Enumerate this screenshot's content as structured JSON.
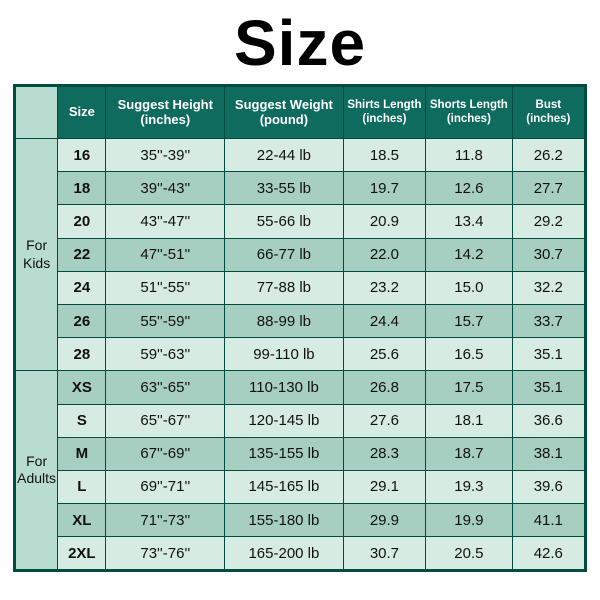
{
  "title": "Size",
  "headers": {
    "size": "Size",
    "height_l1": "Suggest Height",
    "height_l2": "(inches)",
    "weight_l1": "Suggest Weight",
    "weight_l2": "(pound)",
    "shirts_l1": "Shirts Length",
    "shirts_l2": "(inches)",
    "shorts_l1": "Shorts Length",
    "shorts_l2": "(inches)",
    "bust_l1": "Bust",
    "bust_l2": "(inches)"
  },
  "bg": {
    "even": "#d6ebe2",
    "odd": "#a6cfc1",
    "group": "#b8dcd0",
    "header": "#0f6b5e",
    "border": "#004d40",
    "header_text": "#ffffff",
    "cell_text": "#111111"
  },
  "groups": [
    {
      "label_l1": "For",
      "label_l2": "Kids",
      "rows": [
        {
          "size": "16",
          "height": "35''-39''",
          "weight": "22-44 lb",
          "shirts": "18.5",
          "shorts": "11.8",
          "bust": "26.2"
        },
        {
          "size": "18",
          "height": "39''-43''",
          "weight": "33-55 lb",
          "shirts": "19.7",
          "shorts": "12.6",
          "bust": "27.7"
        },
        {
          "size": "20",
          "height": "43''-47''",
          "weight": "55-66 lb",
          "shirts": "20.9",
          "shorts": "13.4",
          "bust": "29.2"
        },
        {
          "size": "22",
          "height": "47''-51''",
          "weight": "66-77 lb",
          "shirts": "22.0",
          "shorts": "14.2",
          "bust": "30.7"
        },
        {
          "size": "24",
          "height": "51''-55''",
          "weight": "77-88 lb",
          "shirts": "23.2",
          "shorts": "15.0",
          "bust": "32.2"
        },
        {
          "size": "26",
          "height": "55''-59''",
          "weight": "88-99 lb",
          "shirts": "24.4",
          "shorts": "15.7",
          "bust": "33.7"
        },
        {
          "size": "28",
          "height": "59''-63''",
          "weight": "99-110 lb",
          "shirts": "25.6",
          "shorts": "16.5",
          "bust": "35.1"
        }
      ]
    },
    {
      "label_l1": "For",
      "label_l2": "Adults",
      "rows": [
        {
          "size": "XS",
          "height": "63''-65''",
          "weight": "110-130 lb",
          "shirts": "26.8",
          "shorts": "17.5",
          "bust": "35.1"
        },
        {
          "size": "S",
          "height": "65''-67''",
          "weight": "120-145 lb",
          "shirts": "27.6",
          "shorts": "18.1",
          "bust": "36.6"
        },
        {
          "size": "M",
          "height": "67''-69''",
          "weight": "135-155 lb",
          "shirts": "28.3",
          "shorts": "18.7",
          "bust": "38.1"
        },
        {
          "size": "L",
          "height": "69''-71''",
          "weight": "145-165 lb",
          "shirts": "29.1",
          "shorts": "19.3",
          "bust": "39.6"
        },
        {
          "size": "XL",
          "height": "71''-73''",
          "weight": "155-180 lb",
          "shirts": "29.9",
          "shorts": "19.9",
          "bust": "41.1"
        },
        {
          "size": "2XL",
          "height": "73''-76''",
          "weight": "165-200 lb",
          "shirts": "30.7",
          "shorts": "20.5",
          "bust": "42.6"
        }
      ]
    }
  ]
}
